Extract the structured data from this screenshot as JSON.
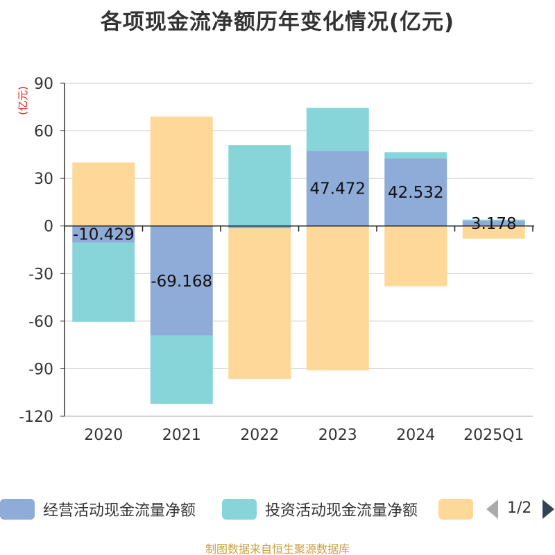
{
  "chart_data": {
    "type": "bar",
    "stacked": true,
    "title": "各项现金流净额历年变化情况(亿元)",
    "ylabel": "(亿元)",
    "categories": [
      "2020",
      "2021",
      "2022",
      "2023",
      "2024",
      "2025Q1"
    ],
    "ylim": [
      -120,
      90
    ],
    "yticks": [
      90,
      60,
      30,
      0,
      -30,
      -60,
      -90,
      -120
    ],
    "grid": true,
    "series": [
      {
        "name": "经营活动现金流量净额",
        "color": "#8facd8",
        "values": [
          -10.429,
          -69.168,
          -1.5,
          47.472,
          42.532,
          3.178
        ],
        "labels": [
          "-10.429",
          "-69.168",
          "",
          "47.472",
          "42.532",
          "3.178"
        ]
      },
      {
        "name": "投资活动现金流量净额",
        "color": "#88d5d9",
        "values": [
          -50,
          -43,
          51,
          27,
          4,
          0.8
        ]
      },
      {
        "name": "",
        "color": "#fed898",
        "values": [
          40,
          69,
          -95,
          -91,
          -38,
          -8
        ]
      }
    ],
    "legend": {
      "position": "bottom",
      "page": "1/2"
    }
  },
  "source": "制图数据来自恒生聚源数据库"
}
